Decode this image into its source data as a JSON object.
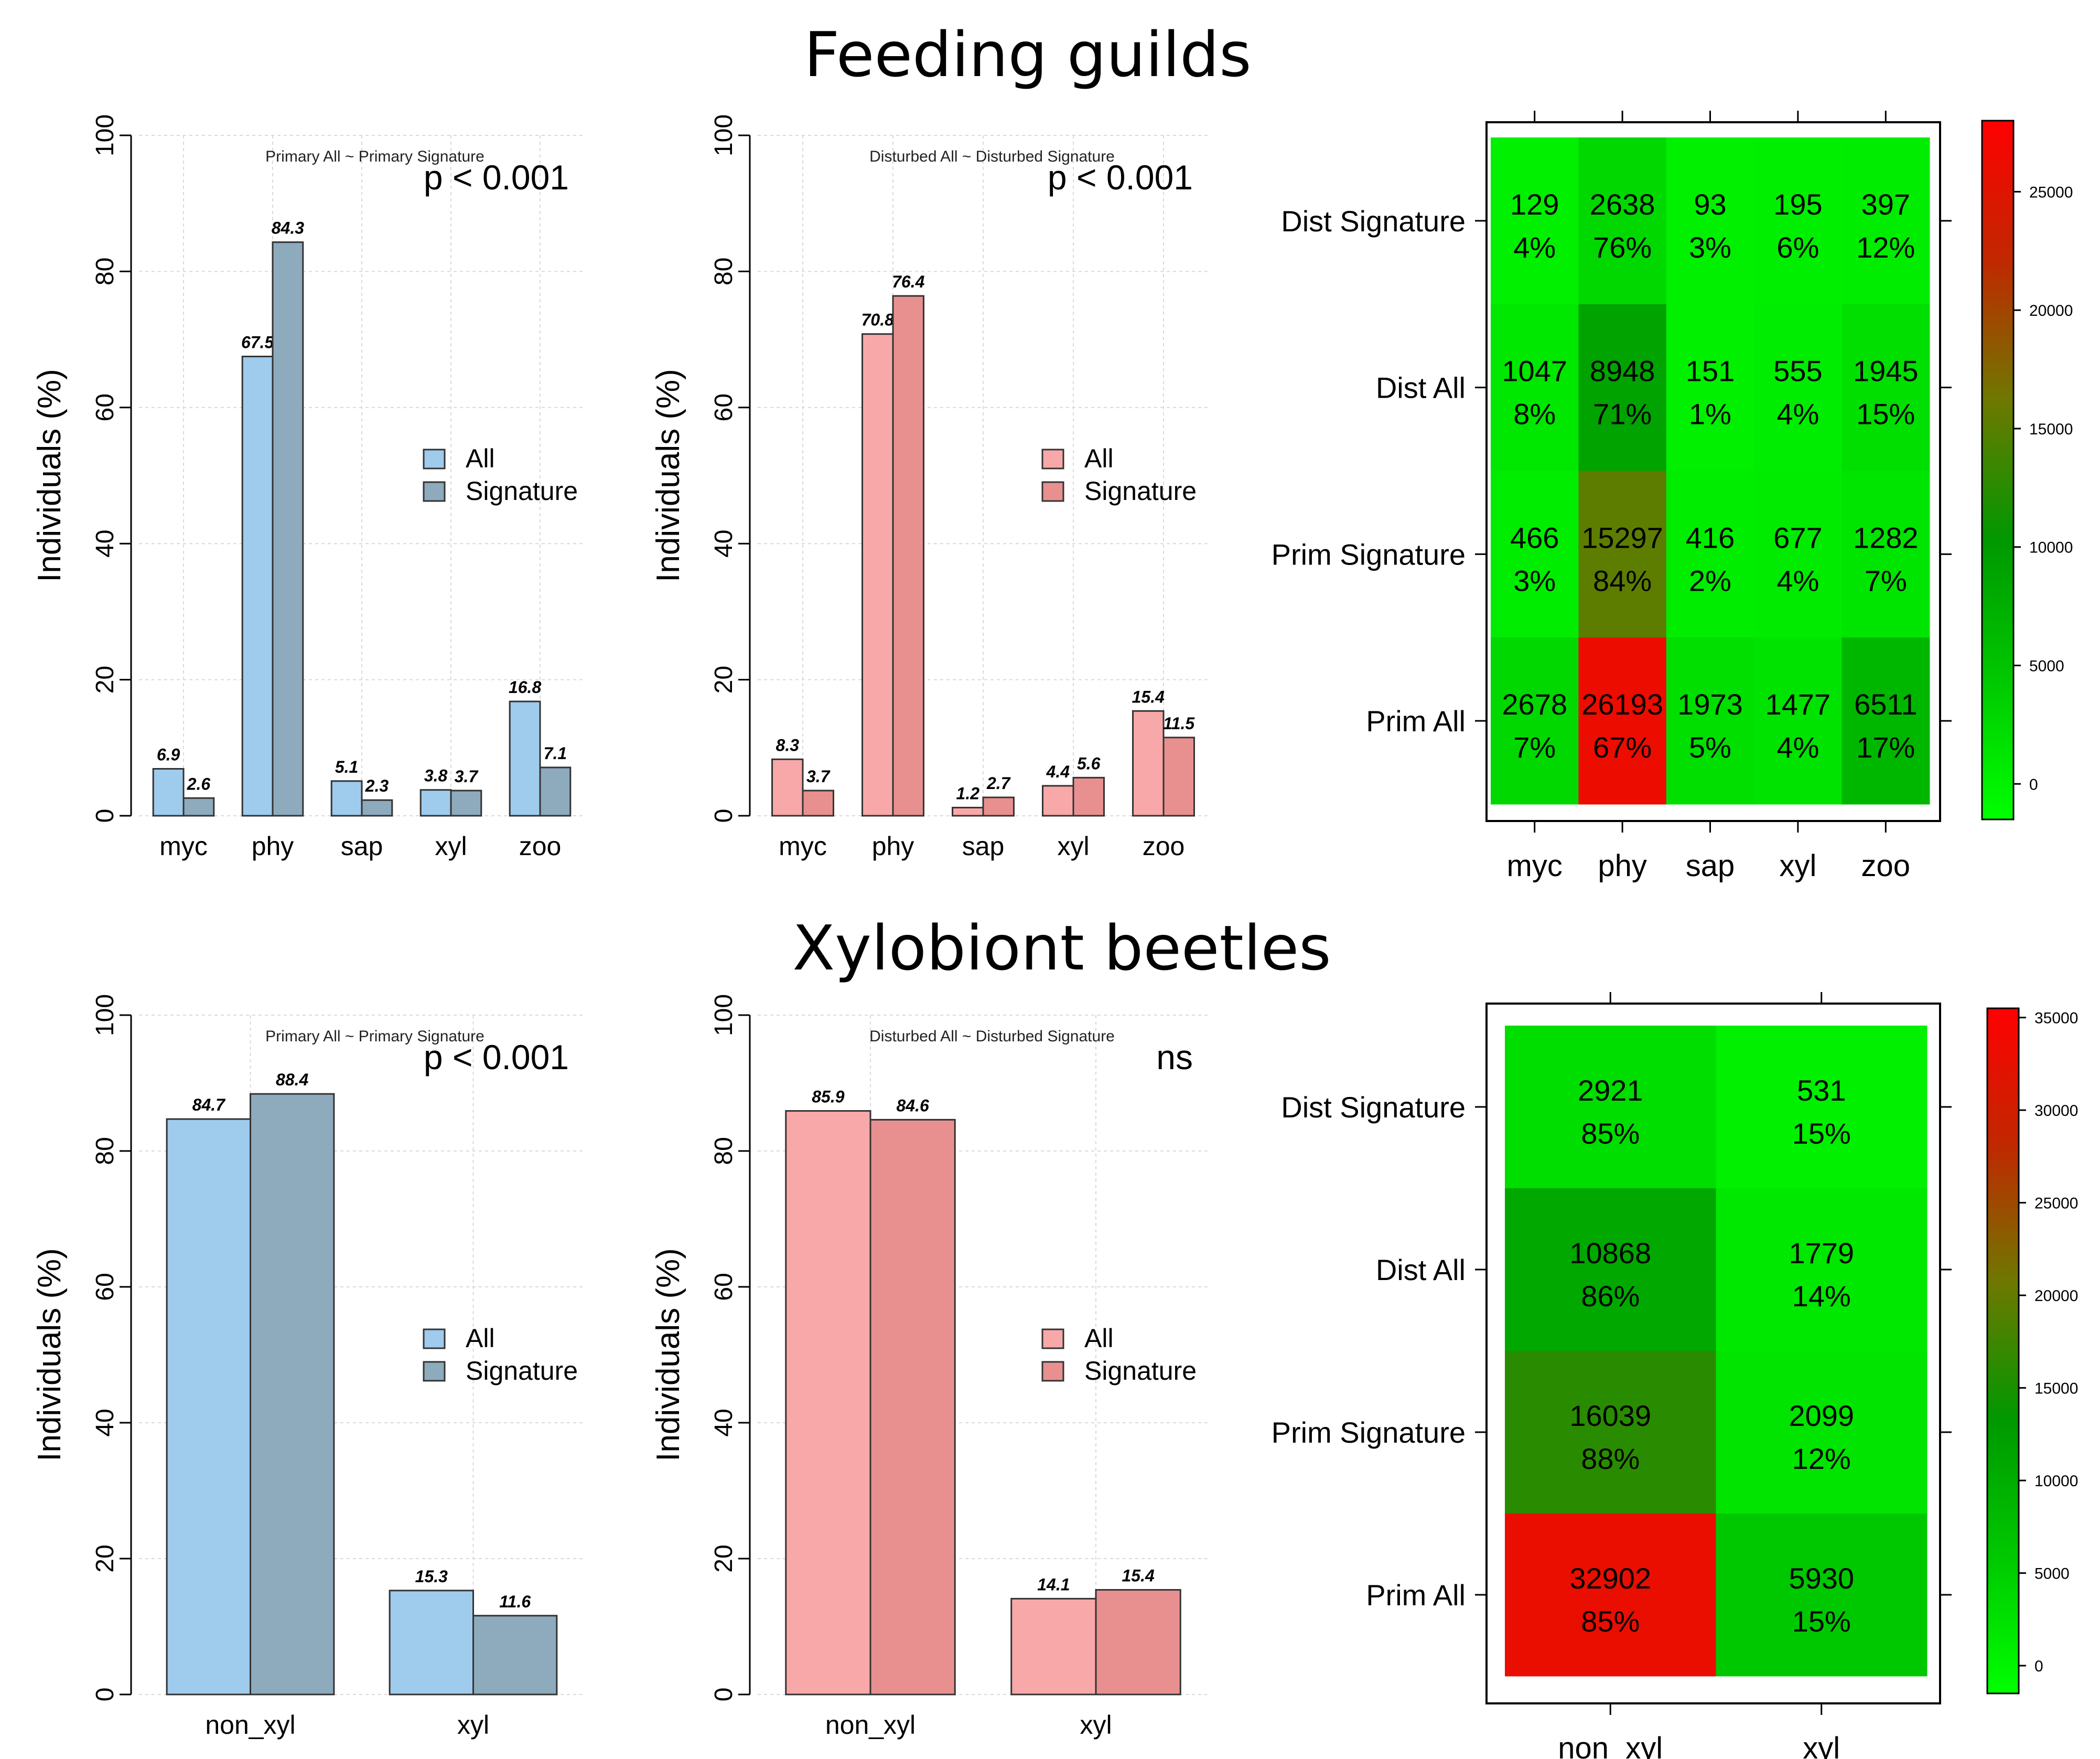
{
  "sections": [
    {
      "title": "Feeding guilds"
    },
    {
      "title": "Xylobiont beetles"
    }
  ],
  "colors": {
    "all_blue": "#9fcbec",
    "sig_blue": "#8eaabd",
    "all_pink": "#f8a8a8",
    "sig_pink": "#e89090",
    "grid": "#d9d9d9"
  },
  "chart_data": [
    {
      "type": "bar",
      "section": 0,
      "subtitle": "Primary All ~ Primary Signature",
      "pvalue": "p < 0.001",
      "ylabel": "Individuals (%)",
      "ylim": [
        0,
        100
      ],
      "yticks": [
        "0",
        "20",
        "40",
        "60",
        "80",
        "100"
      ],
      "categories": [
        "myc",
        "phy",
        "sap",
        "xyl",
        "zoo"
      ],
      "series": [
        {
          "name": "All",
          "values": [
            6.9,
            67.5,
            5.1,
            3.8,
            16.8
          ],
          "labels": [
            "6.9",
            "67.5",
            "5.1",
            "3.8",
            "16.8"
          ]
        },
        {
          "name": "Signature",
          "values": [
            2.6,
            84.3,
            2.3,
            3.7,
            7.1
          ],
          "labels": [
            "2.6",
            "84.3",
            "2.3",
            "3.7",
            "7.1"
          ]
        }
      ],
      "palette": "blue"
    },
    {
      "type": "bar",
      "section": 0,
      "subtitle": "Disturbed All ~ Disturbed Signature",
      "pvalue": "p < 0.001",
      "ylabel": "Individuals (%)",
      "ylim": [
        0,
        100
      ],
      "yticks": [
        "0",
        "20",
        "40",
        "60",
        "80",
        "100"
      ],
      "categories": [
        "myc",
        "phy",
        "sap",
        "xyl",
        "zoo"
      ],
      "series": [
        {
          "name": "All",
          "values": [
            8.3,
            70.8,
            1.2,
            4.4,
            15.4
          ],
          "labels": [
            "8.3",
            "70.8",
            "1.2",
            "4.4",
            "15.4"
          ]
        },
        {
          "name": "Signature",
          "values": [
            3.7,
            76.4,
            2.7,
            5.6,
            11.5
          ],
          "labels": [
            "3.7",
            "76.4",
            "2.7",
            "5.6",
            "11.5"
          ]
        }
      ],
      "palette": "pink"
    },
    {
      "type": "heatmap",
      "section": 0,
      "rows": [
        "Dist Signature",
        "Dist All",
        "Prim Signature",
        "Prim All"
      ],
      "cols": [
        "myc",
        "phy",
        "sap",
        "xyl",
        "zoo"
      ],
      "counts": [
        [
          129,
          2638,
          93,
          195,
          397
        ],
        [
          1047,
          8948,
          151,
          555,
          1945
        ],
        [
          466,
          15297,
          416,
          677,
          1282
        ],
        [
          2678,
          26193,
          1973,
          1477,
          6511
        ]
      ],
      "count_labels": [
        [
          "129",
          "2638",
          "93",
          "195",
          "397"
        ],
        [
          "1047",
          "8948",
          "151",
          "555",
          "1945"
        ],
        [
          "466",
          "15297",
          "416",
          "677",
          "1282"
        ],
        [
          "2678",
          "26193",
          "1973",
          "1477",
          "6511"
        ]
      ],
      "percent_labels": [
        [
          "4%",
          "76%",
          "3%",
          "6%",
          "12%"
        ],
        [
          "8%",
          "71%",
          "1%",
          "4%",
          "15%"
        ],
        [
          "3%",
          "84%",
          "2%",
          "4%",
          "7%"
        ],
        [
          "7%",
          "67%",
          "5%",
          "4%",
          "17%"
        ]
      ],
      "color_scale": {
        "min": -1500,
        "max": 28000,
        "stops": [
          "#00ff00",
          "#00c800",
          "#009800",
          "#6e7800",
          "#c02800",
          "#ff0000"
        ]
      },
      "legend_ticks": [
        0,
        5000,
        10000,
        15000,
        20000,
        25000
      ],
      "legend_tick_labels": [
        "0",
        "5000",
        "10000",
        "15000",
        "20000",
        "25000"
      ]
    },
    {
      "type": "bar",
      "section": 1,
      "subtitle": "Primary All ~ Primary Signature",
      "pvalue": "p < 0.001",
      "ylabel": "Individuals (%)",
      "ylim": [
        0,
        100
      ],
      "yticks": [
        "0",
        "20",
        "40",
        "60",
        "80",
        "100"
      ],
      "categories": [
        "non_xyl",
        "xyl"
      ],
      "series": [
        {
          "name": "All",
          "values": [
            84.7,
            15.3
          ],
          "labels": [
            "84.7",
            "15.3"
          ]
        },
        {
          "name": "Signature",
          "values": [
            88.4,
            11.6
          ],
          "labels": [
            "88.4",
            "11.6"
          ]
        }
      ],
      "palette": "blue"
    },
    {
      "type": "bar",
      "section": 1,
      "subtitle": "Disturbed All ~ Disturbed Signature",
      "pvalue": "ns",
      "ylabel": "Individuals (%)",
      "ylim": [
        0,
        100
      ],
      "yticks": [
        "0",
        "20",
        "40",
        "60",
        "80",
        "100"
      ],
      "categories": [
        "non_xyl",
        "xyl"
      ],
      "series": [
        {
          "name": "All",
          "values": [
            85.9,
            14.1
          ],
          "labels": [
            "85.9",
            "14.1"
          ]
        },
        {
          "name": "Signature",
          "values": [
            84.6,
            15.4
          ],
          "labels": [
            "84.6",
            "15.4"
          ]
        }
      ],
      "palette": "pink"
    },
    {
      "type": "heatmap",
      "section": 1,
      "rows": [
        "Dist Signature",
        "Dist All",
        "Prim Signature",
        "Prim All"
      ],
      "cols": [
        "non_xyl",
        "xyl"
      ],
      "counts": [
        [
          2921,
          531
        ],
        [
          10868,
          1779
        ],
        [
          16039,
          2099
        ],
        [
          32902,
          5930
        ]
      ],
      "count_labels": [
        [
          "2921",
          "531"
        ],
        [
          "10868",
          "1779"
        ],
        [
          "16039",
          "2099"
        ],
        [
          "32902",
          "5930"
        ]
      ],
      "percent_labels": [
        [
          "85%",
          "15%"
        ],
        [
          "86%",
          "14%"
        ],
        [
          "88%",
          "12%"
        ],
        [
          "85%",
          "15%"
        ]
      ],
      "color_scale": {
        "min": -1500,
        "max": 35500,
        "stops": [
          "#00ff00",
          "#00c800",
          "#009800",
          "#6e7800",
          "#c02800",
          "#ff0000"
        ]
      },
      "legend_ticks": [
        0,
        5000,
        10000,
        15000,
        20000,
        25000,
        30000,
        35000
      ],
      "legend_tick_labels": [
        "0",
        "5000",
        "10000",
        "15000",
        "20000",
        "25000",
        "30000",
        "35000"
      ]
    }
  ]
}
